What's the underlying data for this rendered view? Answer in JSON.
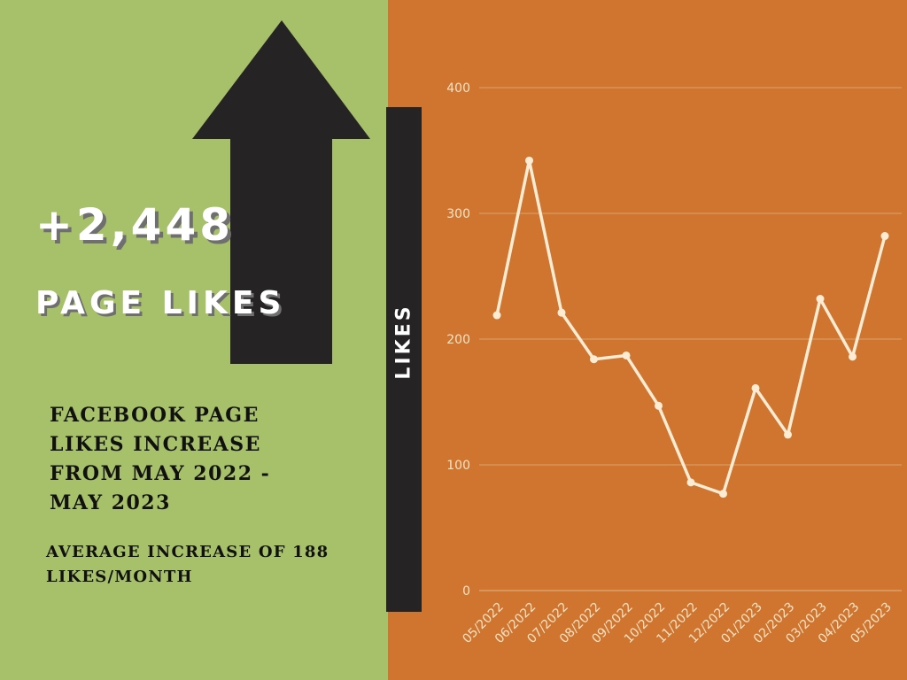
{
  "colors": {
    "left_bg": "#a7c06a",
    "right_bg": "#cf7530",
    "arrow": "#252324",
    "line": "#fbecd3",
    "grid": "#dca26a"
  },
  "headline": {
    "number": "+2,448",
    "label": "PAGE LIKES"
  },
  "description": "FACEBOOK PAGE LIKES INCREASE FROM MAY 2022 - MAY 2023",
  "average": "AVERAGE INCREASE OF 188 LIKES/MONTH",
  "chart_data": {
    "type": "line",
    "ylabel": "LIKES",
    "ylim": [
      0,
      400
    ],
    "yticks": [
      0,
      100,
      200,
      300,
      400
    ],
    "grid": true,
    "categories": [
      "05/2022",
      "06/2022",
      "07/2022",
      "08/2022",
      "09/2022",
      "10/2022",
      "11/2022",
      "12/2022",
      "01/2023",
      "02/2023",
      "03/2023",
      "04/2023",
      "05/2023"
    ],
    "values": [
      219,
      342,
      221,
      184,
      187,
      147,
      86,
      77,
      161,
      124,
      232,
      186,
      282
    ]
  }
}
